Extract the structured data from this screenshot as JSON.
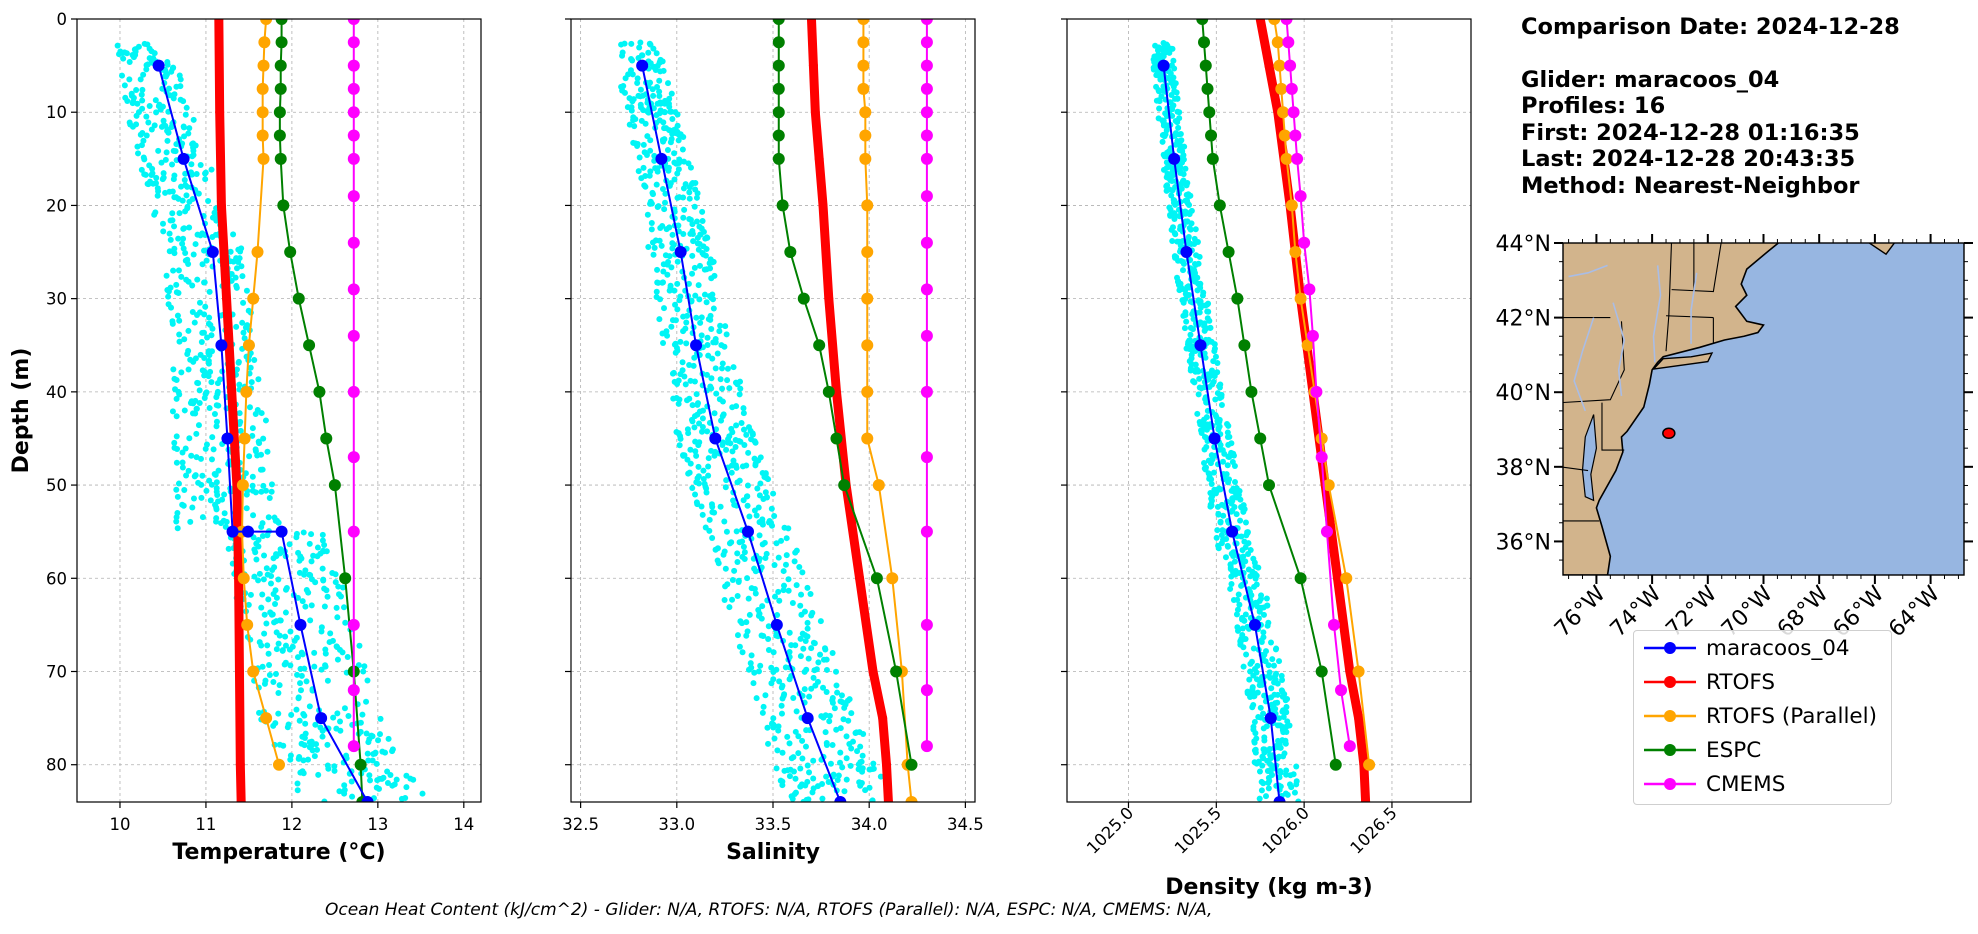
{
  "info": {
    "comparison_date": "Comparison Date: 2024-12-28",
    "glider": "Glider: maracoos_04",
    "profiles": "Profiles: 16",
    "first": "First: 2024-12-28 01:16:35",
    "last": "Last: 2024-12-28 20:43:35",
    "method": "Method: Nearest-Neighbor"
  },
  "footer": "Ocean Heat Content (kJ/cm^2) - Glider: N/A,  RTOFS: N/A,  RTOFS (Parallel): N/A,  ESPC: N/A,  CMEMS: N/A,",
  "colors": {
    "glider_points": "#00f5f5",
    "maracoos_04": "#0000ff",
    "RTOFS": "#ff0000",
    "RTOFS (Parallel)": "#ffa500",
    "ESPC": "#008000",
    "CMEMS": "#ff00ff",
    "land": "#d2b48c",
    "ocean": "#97b6e1",
    "rivers": "#a9bde6"
  },
  "legend": [
    "maracoos_04",
    "RTOFS",
    "RTOFS (Parallel)",
    "ESPC",
    "CMEMS"
  ],
  "chart_data": [
    {
      "type": "line",
      "xlabel": "Temperature (°C)",
      "ylabel": "Depth (m)",
      "xlim": [
        9.5,
        14.2
      ],
      "ylim": [
        84,
        0
      ],
      "xticks": [
        10,
        11,
        12,
        13,
        14
      ],
      "yticks": [
        0,
        10,
        20,
        30,
        40,
        50,
        60,
        70,
        80
      ],
      "grid": true,
      "series": [
        {
          "name": "maracoos_04",
          "x": [
            10.45,
            10.74,
            11.08,
            11.18,
            11.25,
            11.31,
            11.49,
            11.88,
            12.1,
            12.34,
            12.88
          ],
          "y": [
            5,
            15,
            25,
            35,
            45,
            55,
            55,
            55,
            65,
            75,
            84
          ]
        },
        {
          "name": "RTOFS",
          "x": [
            11.15,
            11.16,
            11.18,
            11.21,
            11.24,
            11.27,
            11.3,
            11.33,
            11.36,
            11.38,
            11.39,
            11.4,
            11.41
          ],
          "y": [
            0,
            10,
            20,
            25,
            30,
            35,
            40,
            45,
            50,
            60,
            70,
            80,
            84
          ]
        },
        {
          "name": "RTOFS (Parallel)",
          "x": [
            11.7,
            11.68,
            11.67,
            11.66,
            11.66,
            11.66,
            11.67,
            11.6,
            11.55,
            11.5,
            11.47,
            11.45,
            11.43,
            11.42,
            11.44,
            11.48,
            11.55,
            11.7,
            11.85
          ],
          "y": [
            0,
            2.5,
            5,
            7.5,
            10,
            12.5,
            15,
            25,
            30,
            35,
            40,
            45,
            50,
            55,
            60,
            65,
            70,
            75,
            80
          ]
        },
        {
          "name": "ESPC",
          "x": [
            11.88,
            11.88,
            11.87,
            11.87,
            11.86,
            11.86,
            11.87,
            11.9,
            11.98,
            12.08,
            12.2,
            12.32,
            12.4,
            12.5,
            12.62,
            12.72,
            12.8,
            12.82
          ],
          "y": [
            0,
            2.5,
            5,
            7.5,
            10,
            12.5,
            15,
            20,
            25,
            30,
            35,
            40,
            45,
            50,
            60,
            70,
            80,
            84
          ]
        },
        {
          "name": "CMEMS",
          "x": [
            12.72,
            12.72,
            12.72,
            12.72,
            12.72,
            12.72,
            12.72,
            12.72,
            12.72,
            12.72,
            12.72,
            12.72,
            12.72,
            12.72,
            12.72,
            12.72,
            12.72
          ],
          "y": [
            0,
            2.5,
            5,
            7.5,
            10,
            12.5,
            15,
            19,
            24,
            29,
            34,
            40,
            47,
            55,
            65,
            72,
            78
          ]
        }
      ]
    },
    {
      "type": "line",
      "xlabel": "Salinity",
      "xlim": [
        32.45,
        34.55
      ],
      "ylim": [
        84,
        0
      ],
      "xticks": [
        32.5,
        33.0,
        33.5,
        34.0,
        34.5
      ],
      "yticks": [
        0,
        10,
        20,
        30,
        40,
        50,
        60,
        70,
        80
      ],
      "grid": true,
      "series": [
        {
          "name": "maracoos_04",
          "x": [
            32.82,
            32.92,
            33.02,
            33.1,
            33.2,
            33.37,
            33.52,
            33.68,
            33.85
          ],
          "y": [
            5,
            15,
            25,
            35,
            45,
            55,
            65,
            75,
            84
          ]
        },
        {
          "name": "RTOFS",
          "x": [
            33.7,
            33.71,
            33.72,
            33.74,
            33.76,
            33.79,
            33.83,
            33.88,
            33.95,
            34.02,
            34.07,
            34.09,
            34.1
          ],
          "y": [
            0,
            5,
            10,
            15,
            20,
            30,
            40,
            50,
            60,
            70,
            75,
            80,
            84
          ]
        },
        {
          "name": "RTOFS (Parallel)",
          "x": [
            33.97,
            33.97,
            33.97,
            33.97,
            33.98,
            33.98,
            33.98,
            33.99,
            33.99,
            33.99,
            33.99,
            33.99,
            33.99,
            34.05,
            34.12,
            34.17,
            34.2,
            34.22
          ],
          "y": [
            0,
            2.5,
            5,
            7.5,
            10,
            12.5,
            15,
            20,
            25,
            30,
            35,
            40,
            45,
            50,
            60,
            70,
            80,
            84
          ]
        },
        {
          "name": "ESPC",
          "x": [
            33.53,
            33.53,
            33.53,
            33.53,
            33.53,
            33.53,
            33.53,
            33.55,
            33.59,
            33.66,
            33.74,
            33.79,
            33.83,
            33.87,
            34.04,
            34.14,
            34.22
          ],
          "y": [
            0,
            2.5,
            5,
            7.5,
            10,
            12.5,
            15,
            20,
            25,
            30,
            35,
            40,
            45,
            50,
            60,
            70,
            80
          ]
        },
        {
          "name": "CMEMS",
          "x": [
            34.3,
            34.3,
            34.3,
            34.3,
            34.3,
            34.3,
            34.3,
            34.3,
            34.3,
            34.3,
            34.3,
            34.3,
            34.3,
            34.3,
            34.3,
            34.3,
            34.3
          ],
          "y": [
            0,
            2.5,
            5,
            7.5,
            10,
            12.5,
            15,
            19,
            24,
            29,
            34,
            40,
            47,
            55,
            65,
            72,
            78
          ]
        }
      ]
    },
    {
      "type": "line",
      "xlabel": "Density (kg m-3)",
      "xlim": [
        1024.65,
        1026.95
      ],
      "ylim": [
        84,
        0
      ],
      "xticks": [
        1025.0,
        1025.5,
        1026.0,
        1026.5
      ],
      "yticks": [
        0,
        10,
        20,
        30,
        40,
        50,
        60,
        70,
        80
      ],
      "grid": true,
      "series": [
        {
          "name": "maracoos_04",
          "x": [
            1025.2,
            1025.26,
            1025.33,
            1025.41,
            1025.49,
            1025.59,
            1025.72,
            1025.81,
            1025.86
          ],
          "y": [
            5,
            15,
            25,
            35,
            45,
            55,
            65,
            75,
            84
          ]
        },
        {
          "name": "RTOFS",
          "x": [
            1025.75,
            1025.8,
            1025.85,
            1025.92,
            1025.98,
            1026.05,
            1026.12,
            1026.19,
            1026.26,
            1026.31,
            1026.34,
            1026.35
          ],
          "y": [
            0,
            5,
            10,
            20,
            30,
            40,
            50,
            60,
            70,
            75,
            80,
            84
          ]
        },
        {
          "name": "RTOFS (Parallel)",
          "x": [
            1025.83,
            1025.85,
            1025.86,
            1025.87,
            1025.88,
            1025.89,
            1025.9,
            1025.93,
            1025.95,
            1025.98,
            1026.02,
            1026.06,
            1026.1,
            1026.14,
            1026.24,
            1026.31,
            1026.37
          ],
          "y": [
            0,
            2.5,
            5,
            7.5,
            10,
            12.5,
            15,
            20,
            25,
            30,
            35,
            40,
            45,
            50,
            60,
            70,
            80
          ]
        },
        {
          "name": "ESPC",
          "x": [
            1025.42,
            1025.43,
            1025.44,
            1025.45,
            1025.46,
            1025.47,
            1025.48,
            1025.52,
            1025.57,
            1025.62,
            1025.66,
            1025.7,
            1025.75,
            1025.8,
            1025.98,
            1026.1,
            1026.18
          ],
          "y": [
            0,
            2.5,
            5,
            7.5,
            10,
            12.5,
            15,
            20,
            25,
            30,
            35,
            40,
            45,
            50,
            60,
            70,
            80
          ]
        },
        {
          "name": "CMEMS",
          "x": [
            1025.9,
            1025.91,
            1025.92,
            1025.93,
            1025.94,
            1025.95,
            1025.96,
            1025.98,
            1026.0,
            1026.03,
            1026.05,
            1026.07,
            1026.1,
            1026.13,
            1026.17,
            1026.21,
            1026.26
          ],
          "y": [
            0,
            2.5,
            5,
            7.5,
            10,
            12.5,
            15,
            19,
            24,
            29,
            34,
            40,
            47,
            55,
            65,
            72,
            78
          ]
        }
      ]
    }
  ],
  "map": {
    "lat_ticks": [
      "44°N",
      "42°N",
      "40°N",
      "38°N",
      "36°N"
    ],
    "lon_ticks": [
      "76°W",
      "74°W",
      "72°W",
      "70°W",
      "68°W",
      "66°W",
      "64°W"
    ],
    "glider_location": {
      "lon": -73.4,
      "lat": 38.9
    }
  }
}
